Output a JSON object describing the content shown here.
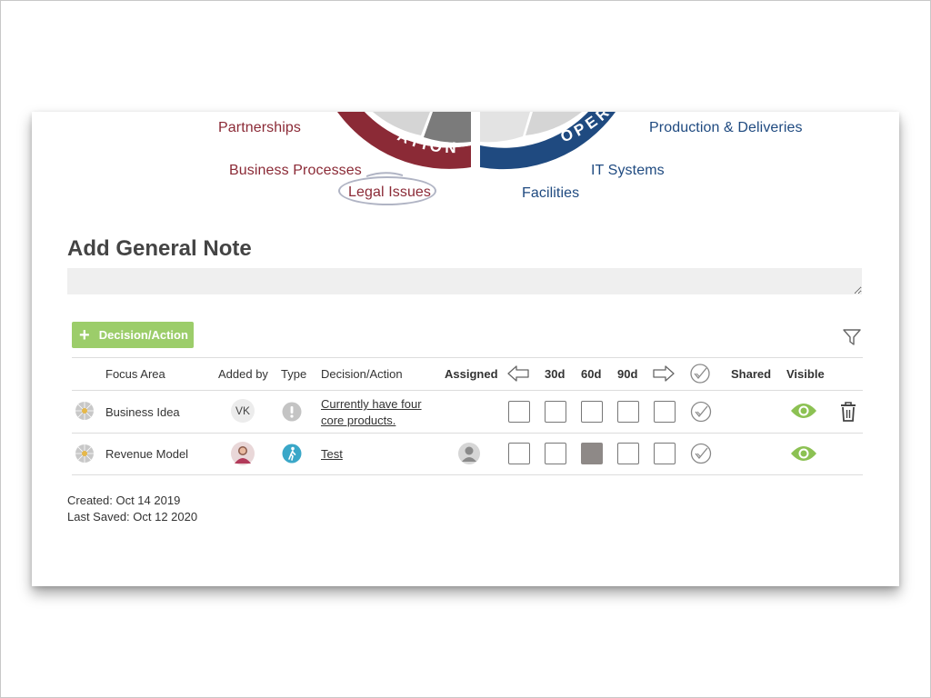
{
  "wheel": {
    "left_labels": [
      "Partnerships",
      "Business Processes",
      "Legal Issues"
    ],
    "right_labels": [
      "Production & Deliveries",
      "IT Systems",
      "Facilities"
    ],
    "arc_left_text": "ATION",
    "arc_right_text": "OPER",
    "colors": {
      "left": "#8b2a36",
      "right": "#1f4a80",
      "segment": "#7b7b7b"
    }
  },
  "note": {
    "title": "Add General Note",
    "placeholder": ""
  },
  "toolbar": {
    "add_button_label": "Decision/Action",
    "add_button_color": "#9ccd6a",
    "filter_icon": "filter-icon"
  },
  "table": {
    "headers": {
      "focus_area": "Focus Area",
      "added_by": "Added by",
      "type": "Type",
      "decision_action": "Decision/Action",
      "assigned": "Assigned",
      "d30": "30d",
      "d60": "60d",
      "d90": "90d",
      "shared": "Shared",
      "visible": "Visible"
    },
    "rows": [
      {
        "focus_area": "Business Idea",
        "added_by": "VK",
        "type_icon": "exclamation-icon",
        "decision_line1": "Currently have four",
        "decision_line2": "core products.",
        "assigned": "",
        "boxes": [
          "empty",
          "empty",
          "empty",
          "empty",
          "empty"
        ],
        "visible_icon": "eye-icon",
        "delete_icon": "trash-icon"
      },
      {
        "focus_area": "Revenue Model",
        "added_by": "",
        "type_icon": "walking-person-icon",
        "decision_line1": "Test",
        "decision_line2": "",
        "assigned": "user-placeholder-icon",
        "boxes": [
          "empty",
          "empty",
          "filled",
          "empty",
          "empty"
        ],
        "visible_icon": "eye-icon"
      }
    ]
  },
  "meta": {
    "created": "Created: Oct 14 2019",
    "last_saved": "Last Saved: Oct 12 2020"
  }
}
